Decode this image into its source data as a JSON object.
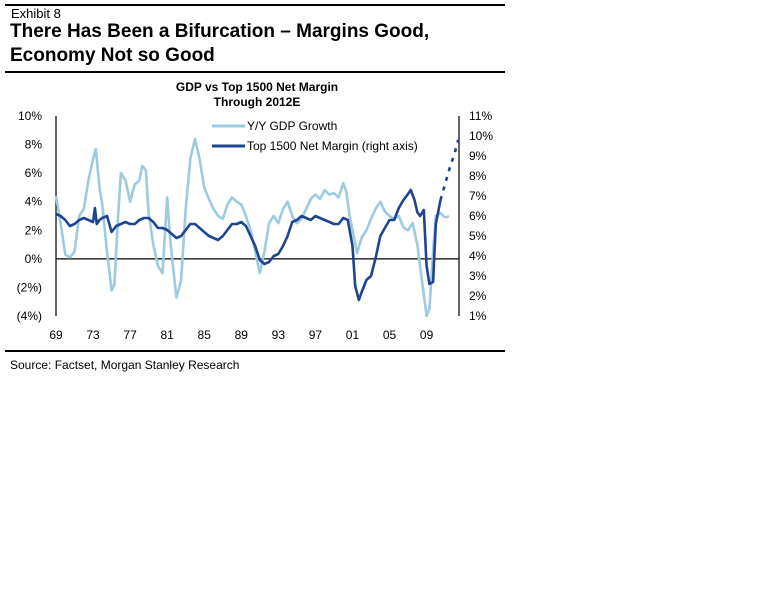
{
  "header": {
    "exhibit_label": "Exhibit 8",
    "headline": "There Has Been a Bifurcation – Margins Good, Economy Not so Good"
  },
  "footer": {
    "source": "Source: Factset, Morgan Stanley Research"
  },
  "colors": {
    "gdp": "#9ecae1",
    "margin": "#1f4591",
    "axis": "#000000"
  },
  "chart_data": {
    "type": "line",
    "title": "GDP vs Top 1500 Net Margin",
    "subtitle": "Through 2012E",
    "xlabel": "",
    "ylabel_left": "",
    "ylabel_right": "",
    "x_tick_labels": [
      "69",
      "73",
      "77",
      "81",
      "85",
      "89",
      "93",
      "97",
      "01",
      "05",
      "09"
    ],
    "x_tick_years": [
      1969,
      1973,
      1977,
      1981,
      1985,
      1989,
      1993,
      1997,
      2001,
      2005,
      2009
    ],
    "xlim": [
      1969,
      2012.5
    ],
    "left_axis": {
      "ylim": [
        -4,
        10
      ],
      "tick_values": [
        10,
        8,
        6,
        4,
        2,
        0,
        -2,
        -4
      ],
      "tick_labels": [
        "10%",
        "8%",
        "6%",
        "4%",
        "2%",
        "0%",
        "(2%)",
        "(4%)"
      ]
    },
    "right_axis": {
      "ylim": [
        1,
        11
      ],
      "tick_values": [
        11,
        10,
        9,
        8,
        7,
        6,
        5,
        4,
        3,
        2,
        1
      ],
      "tick_labels": [
        "11%",
        "10%",
        "9%",
        "8%",
        "7%",
        "6%",
        "5%",
        "4%",
        "3%",
        "2%",
        "1%"
      ]
    },
    "zero_line": 0,
    "legend": {
      "placement": "top-center",
      "entries": [
        "Y/Y GDP Growth",
        "Top 1500 Net Margin (right axis)"
      ]
    },
    "series": [
      {
        "name": "Y/Y GDP Growth",
        "axis": "left",
        "x": [
          1969.0,
          1969.5,
          1970.0,
          1970.5,
          1971.0,
          1971.5,
          1972.0,
          1972.5,
          1973.0,
          1973.3,
          1973.7,
          1974.0,
          1974.5,
          1975.0,
          1975.3,
          1975.7,
          1976.0,
          1976.5,
          1977.0,
          1977.5,
          1978.0,
          1978.3,
          1978.7,
          1979.0,
          1979.5,
          1980.0,
          1980.5,
          1981.0,
          1981.3,
          1981.7,
          1982.0,
          1982.5,
          1983.0,
          1983.5,
          1984.0,
          1984.5,
          1985.0,
          1985.5,
          1986.0,
          1986.5,
          1987.0,
          1987.5,
          1988.0,
          1988.5,
          1989.0,
          1989.5,
          1990.0,
          1990.5,
          1991.0,
          1991.5,
          1992.0,
          1992.5,
          1993.0,
          1993.5,
          1994.0,
          1994.5,
          1995.0,
          1995.5,
          1996.0,
          1996.5,
          1997.0,
          1997.5,
          1998.0,
          1998.5,
          1999.0,
          1999.5,
          2000.0,
          2000.3,
          2000.7,
          2001.0,
          2001.5,
          2002.0,
          2002.5,
          2003.0,
          2003.5,
          2004.0,
          2004.5,
          2005.0,
          2005.5,
          2006.0,
          2006.5,
          2007.0,
          2007.5,
          2008.0,
          2008.5,
          2009.0,
          2009.3,
          2009.7,
          2010.0,
          2010.5,
          2011.0
        ],
        "values": [
          4.4,
          2.5,
          0.3,
          0.1,
          0.5,
          3.0,
          3.5,
          5.5,
          7.0,
          7.7,
          5.0,
          3.8,
          0.5,
          -2.2,
          -1.8,
          3.0,
          6.0,
          5.5,
          4.0,
          5.2,
          5.5,
          6.5,
          6.2,
          3.2,
          1.0,
          -0.5,
          -1.0,
          4.3,
          1.5,
          -1.0,
          -2.7,
          -1.5,
          3.5,
          7.0,
          8.4,
          7.0,
          5.0,
          4.2,
          3.5,
          3.0,
          2.8,
          3.8,
          4.3,
          4.0,
          3.8,
          3.0,
          2.0,
          0.5,
          -1.0,
          0.5,
          2.5,
          3.0,
          2.5,
          3.5,
          4.0,
          3.0,
          2.5,
          2.8,
          3.5,
          4.2,
          4.5,
          4.2,
          4.8,
          4.5,
          4.6,
          4.3,
          5.3,
          4.8,
          3.0,
          2.0,
          0.4,
          1.5,
          2.0,
          2.8,
          3.5,
          4.0,
          3.3,
          3.0,
          2.8,
          3.0,
          2.2,
          2.0,
          2.5,
          1.0,
          -1.5,
          -4.0,
          -3.5,
          0.5,
          3.0,
          3.2,
          2.9
        ],
        "estimate_x": [
          2011.0,
          2011.5,
          2012.0
        ],
        "estimate_values": [
          2.9,
          3.0,
          3.0
        ]
      },
      {
        "name": "Top 1500 Net Margin (right axis)",
        "axis": "right",
        "x": [
          1969.0,
          1969.5,
          1970.0,
          1970.5,
          1971.0,
          1971.5,
          1972.0,
          1972.5,
          1973.0,
          1973.2,
          1973.4,
          1973.7,
          1974.0,
          1974.5,
          1975.0,
          1975.5,
          1976.0,
          1976.5,
          1977.0,
          1977.5,
          1978.0,
          1978.5,
          1979.0,
          1979.5,
          1980.0,
          1980.5,
          1981.0,
          1981.5,
          1982.0,
          1982.5,
          1983.0,
          1983.5,
          1984.0,
          1984.5,
          1985.0,
          1985.5,
          1986.0,
          1986.5,
          1987.0,
          1987.5,
          1988.0,
          1988.5,
          1989.0,
          1989.5,
          1990.0,
          1990.5,
          1991.0,
          1991.5,
          1992.0,
          1992.5,
          1993.0,
          1993.5,
          1994.0,
          1994.5,
          1995.0,
          1995.5,
          1996.0,
          1996.5,
          1997.0,
          1997.5,
          1998.0,
          1998.5,
          1999.0,
          1999.5,
          2000.0,
          2000.5,
          2001.0,
          2001.3,
          2001.7,
          2002.0,
          2002.5,
          2003.0,
          2003.5,
          2004.0,
          2004.5,
          2005.0,
          2005.5,
          2006.0,
          2006.5,
          2007.0,
          2007.3,
          2007.7,
          2008.0,
          2008.3,
          2008.7,
          2009.0,
          2009.3,
          2009.7,
          2010.0,
          2010.5
        ],
        "values": [
          6.1,
          6.0,
          5.8,
          5.5,
          5.6,
          5.8,
          5.9,
          5.8,
          5.7,
          6.4,
          5.6,
          5.8,
          5.9,
          6.0,
          5.2,
          5.5,
          5.6,
          5.7,
          5.6,
          5.6,
          5.8,
          5.9,
          5.9,
          5.7,
          5.4,
          5.4,
          5.3,
          5.1,
          4.9,
          5.0,
          5.3,
          5.6,
          5.6,
          5.4,
          5.2,
          5.0,
          4.9,
          4.8,
          5.0,
          5.3,
          5.6,
          5.6,
          5.7,
          5.5,
          5.0,
          4.5,
          3.8,
          3.6,
          3.7,
          4.0,
          4.1,
          4.5,
          5.0,
          5.7,
          5.8,
          6.0,
          5.9,
          5.8,
          6.0,
          5.9,
          5.8,
          5.7,
          5.6,
          5.6,
          5.9,
          5.8,
          4.5,
          2.5,
          1.8,
          2.2,
          2.8,
          3.0,
          3.9,
          5.0,
          5.4,
          5.8,
          5.8,
          6.4,
          6.8,
          7.1,
          7.3,
          6.8,
          6.2,
          6.0,
          6.3,
          3.5,
          2.6,
          2.7,
          5.6,
          6.8
        ],
        "estimate_x": [
          2010.5,
          2011.0,
          2011.5,
          2012.0,
          2012.4
        ],
        "estimate_values": [
          6.8,
          7.6,
          8.4,
          9.1,
          9.8
        ]
      }
    ]
  }
}
